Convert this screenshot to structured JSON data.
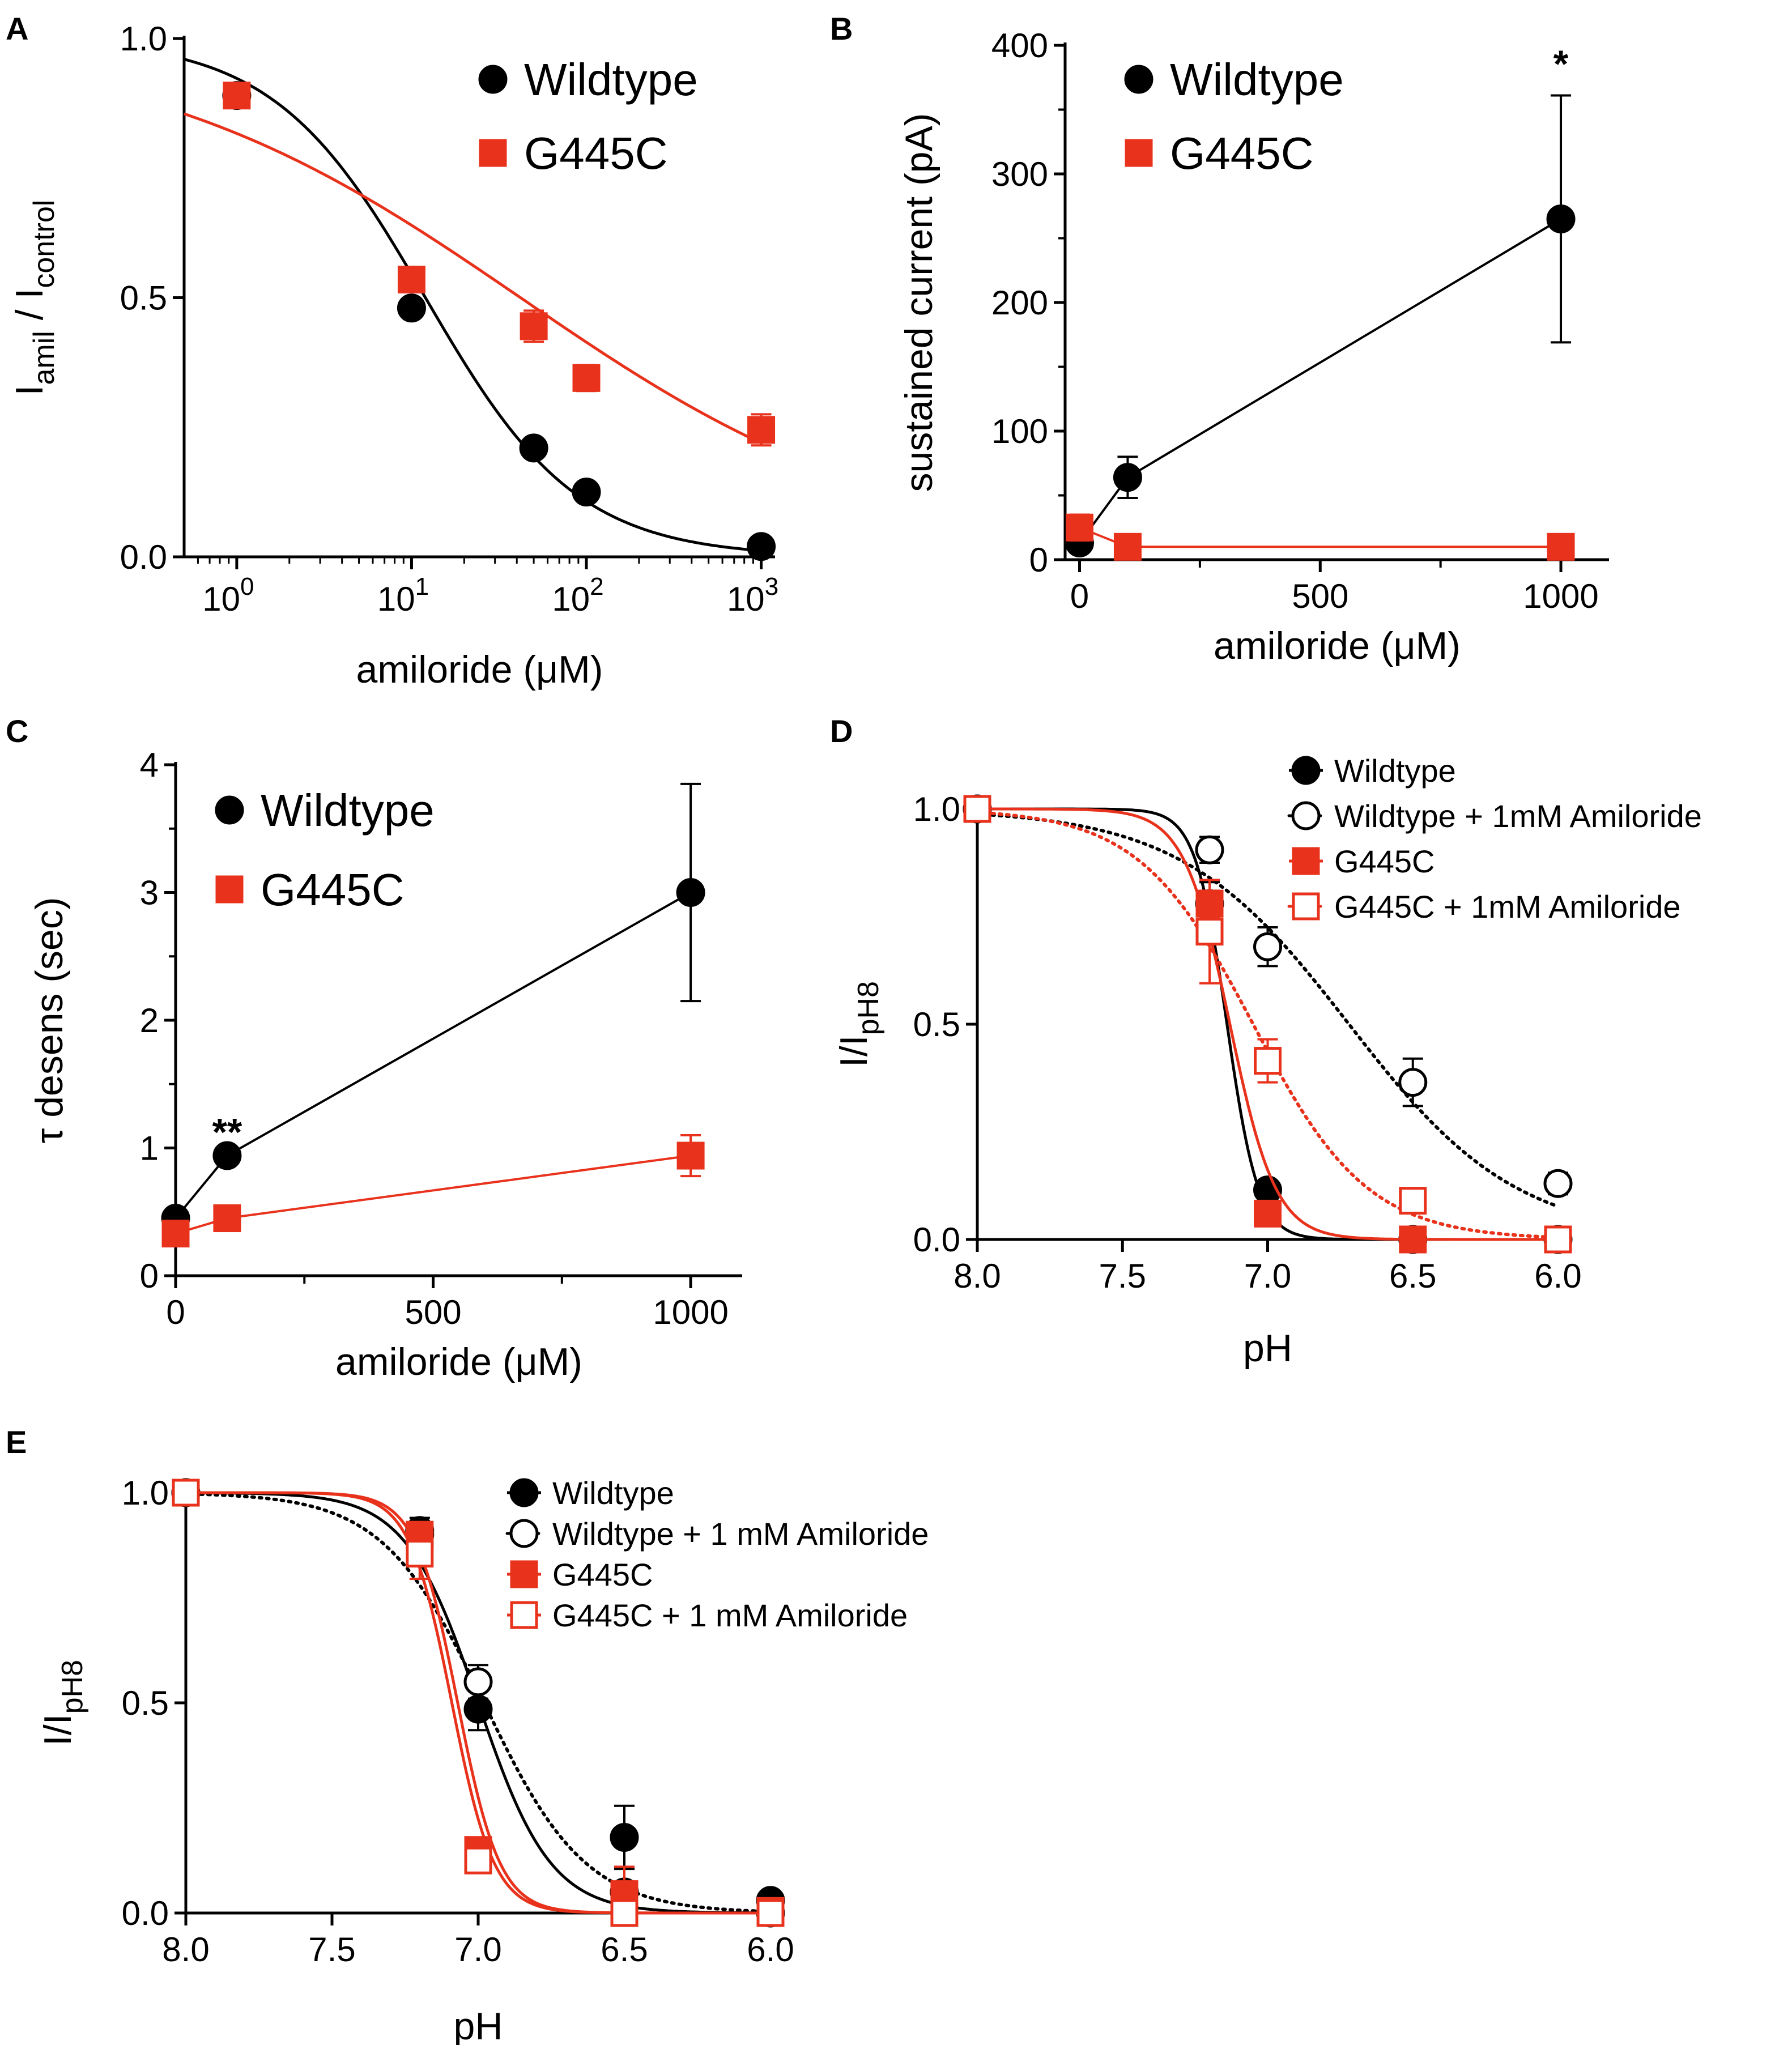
{
  "colors": {
    "wildtype": "#000000",
    "g445c": "#e8321c"
  },
  "chart_data": [
    {
      "panel": "A",
      "type": "scatter",
      "title": "",
      "xlabel": "amiloride (μM)",
      "ylabel": "Iamil / Icontrol",
      "ylabel_parts": {
        "main": "I",
        "sub1": "amil",
        "mid": " / I",
        "sub2": "control"
      },
      "xscale": "log",
      "xlim": [
        0.5,
        1200
      ],
      "ylim": [
        0,
        1.0
      ],
      "xticks": [
        1,
        10,
        100,
        1000
      ],
      "xtick_labels": [
        {
          "base": "10",
          "exp": "0"
        },
        {
          "base": "10",
          "exp": "1"
        },
        {
          "base": "10",
          "exp": "2"
        },
        {
          "base": "10",
          "exp": "3"
        }
      ],
      "yticks": [
        0,
        0.5,
        1.0
      ],
      "ytick_labels": [
        "0.0",
        "0.5",
        "1.0"
      ],
      "legend_position": "top-right",
      "series": [
        {
          "name": "Wildtype",
          "color_key": "wildtype",
          "marker": "circle",
          "filled": true,
          "x": [
            1,
            10,
            50,
            100,
            1000
          ],
          "y": [
            0.89,
            0.48,
            0.21,
            0.125,
            0.02
          ],
          "err": [
            0.015,
            0.012,
            0.01,
            0.01,
            0.008
          ],
          "fit": {
            "kind": "hill_inhibition",
            "top": 1.0,
            "bottom": 0.0,
            "ic50": 12,
            "hill": 1.0
          }
        },
        {
          "name": "G445C",
          "color_key": "g445c",
          "marker": "square",
          "filled": true,
          "x": [
            1,
            10,
            50,
            100,
            1000
          ],
          "y": [
            0.89,
            0.535,
            0.445,
            0.345,
            0.245
          ],
          "err": [
            0.015,
            0.015,
            0.03,
            0.025,
            0.03
          ],
          "fit": {
            "kind": "hill_inhibition",
            "top": 1.0,
            "bottom": 0.0,
            "ic50": 42,
            "hill": 0.4
          }
        }
      ]
    },
    {
      "panel": "B",
      "type": "line",
      "title": "",
      "xlabel": "amiloride (μM)",
      "ylabel": "sustained current (pA)",
      "xlim": [
        -30,
        1100
      ],
      "ylim": [
        0,
        400
      ],
      "xticks": [
        0,
        500,
        1000
      ],
      "xtick_labels": [
        "0",
        "500",
        "1000"
      ],
      "yticks": [
        0,
        100,
        200,
        300,
        400
      ],
      "ytick_labels": [
        "0",
        "100",
        "200",
        "300",
        "400"
      ],
      "legend_position": "top-left",
      "annotations": [
        {
          "text": "*",
          "x": 1000,
          "y": 385
        }
      ],
      "series": [
        {
          "name": "Wildtype",
          "color_key": "wildtype",
          "marker": "circle",
          "filled": true,
          "x": [
            0,
            100,
            1000
          ],
          "y": [
            13,
            64,
            265
          ],
          "err": [
            6,
            16,
            96
          ]
        },
        {
          "name": "G445C",
          "color_key": "g445c",
          "marker": "square",
          "filled": true,
          "x": [
            0,
            100,
            1000
          ],
          "y": [
            25,
            10,
            10
          ],
          "err": [
            10,
            3,
            3
          ]
        }
      ]
    },
    {
      "panel": "C",
      "type": "line",
      "title": "",
      "xlabel": "amiloride (μM)",
      "ylabel": "τ desens (sec)",
      "xlim": [
        0,
        1100
      ],
      "ylim": [
        0,
        4
      ],
      "xticks": [
        0,
        500,
        1000
      ],
      "xtick_labels": [
        "0",
        "500",
        "1000"
      ],
      "yticks": [
        0,
        1,
        2,
        3,
        4
      ],
      "ytick_labels": [
        "0",
        "1",
        "2",
        "3",
        "4"
      ],
      "legend_position": "top-left",
      "annotations": [
        {
          "text": "**",
          "x": 100,
          "y": 1.12
        }
      ],
      "series": [
        {
          "name": "Wildtype",
          "color_key": "wildtype",
          "marker": "circle",
          "filled": true,
          "x": [
            0,
            100,
            1000
          ],
          "y": [
            0.45,
            0.94,
            3.0
          ],
          "err": [
            0.05,
            0.06,
            0.85
          ]
        },
        {
          "name": "G445C",
          "color_key": "g445c",
          "marker": "square",
          "filled": true,
          "x": [
            0,
            100,
            1000
          ],
          "y": [
            0.33,
            0.45,
            0.94
          ],
          "err": [
            0.03,
            0.04,
            0.16
          ]
        }
      ]
    },
    {
      "panel": "D",
      "type": "scatter",
      "title": "",
      "xlabel": "pH",
      "ylabel": "I/IpH8",
      "ylabel_parts": {
        "main": "I/I",
        "sub1": "pH8"
      },
      "xlim": [
        8.0,
        6.0
      ],
      "ylim": [
        0,
        1.0
      ],
      "xticks": [
        8.0,
        7.5,
        7.0,
        6.5,
        6.0
      ],
      "xtick_labels": [
        "8.0",
        "7.5",
        "7.0",
        "6.5",
        "6.0"
      ],
      "yticks": [
        0,
        0.5,
        1.0
      ],
      "ytick_labels": [
        "0.0",
        "0.5",
        "1.0"
      ],
      "legend_position": "top-right",
      "series": [
        {
          "name": "Wildtype",
          "color_key": "wildtype",
          "marker": "circle",
          "filled": true,
          "dotted": false,
          "x": [
            8.0,
            7.2,
            7.0,
            6.5,
            6.0
          ],
          "y": [
            1.0,
            0.78,
            0.115,
            0.0,
            0.0
          ],
          "err": [
            0,
            0.05,
            0.01,
            0,
            0
          ],
          "fit": {
            "kind": "ph_decay",
            "pH50": 7.14,
            "n": 8
          }
        },
        {
          "name": "Wildtype + 1mM Amiloride",
          "color_key": "wildtype",
          "marker": "circle",
          "filled": false,
          "dotted": true,
          "x": [
            8.0,
            7.2,
            7.0,
            6.5,
            6.0
          ],
          "y": [
            1.0,
            0.905,
            0.68,
            0.365,
            0.13
          ],
          "err": [
            0,
            0.03,
            0.045,
            0.055,
            0.025
          ],
          "fit": {
            "kind": "ph_decay",
            "pH50": 6.72,
            "n": 1.5
          }
        },
        {
          "name": "G445C",
          "color_key": "g445c",
          "marker": "square",
          "filled": true,
          "dotted": false,
          "x": [
            8.0,
            7.2,
            7.0,
            6.5,
            6.0
          ],
          "y": [
            1.0,
            0.78,
            0.06,
            0.0,
            0.0
          ],
          "err": [
            0,
            0.03,
            0.01,
            0,
            0
          ],
          "fit": {
            "kind": "ph_decay",
            "pH50": 7.13,
            "n": 5.5
          }
        },
        {
          "name": "G445C + 1mM Amiloride",
          "color_key": "g445c",
          "marker": "square",
          "filled": false,
          "dotted": true,
          "x": [
            8.0,
            7.2,
            7.0,
            6.5,
            6.0
          ],
          "y": [
            1.0,
            0.715,
            0.415,
            0.09,
            0.0
          ],
          "err": [
            0,
            0.12,
            0.05,
            0.01,
            0.02
          ],
          "fit": {
            "kind": "ph_decay",
            "pH50": 7.05,
            "n": 2.2
          }
        }
      ]
    },
    {
      "panel": "E",
      "type": "scatter",
      "title": "",
      "xlabel": "pH",
      "ylabel": "I/IpH8",
      "ylabel_parts": {
        "main": "I/I",
        "sub1": "pH8"
      },
      "xlim": [
        8.0,
        6.0
      ],
      "ylim": [
        0,
        1.0
      ],
      "xticks": [
        8.0,
        7.5,
        7.0,
        6.5,
        6.0
      ],
      "xtick_labels": [
        "8.0",
        "7.5",
        "7.0",
        "6.5",
        "6.0"
      ],
      "yticks": [
        0,
        0.5,
        1.0
      ],
      "ytick_labels": [
        "0.0",
        "0.5",
        "1.0"
      ],
      "legend_position": "top-right",
      "series": [
        {
          "name": "Wildtype",
          "color_key": "wildtype",
          "marker": "circle",
          "filled": true,
          "dotted": false,
          "x": [
            8.0,
            7.2,
            7.0,
            6.5,
            6.0
          ],
          "y": [
            1.0,
            0.91,
            0.485,
            0.18,
            0.03
          ],
          "err": [
            0,
            0.03,
            0.05,
            0.075,
            0
          ],
          "fit": {
            "kind": "ph_decay",
            "pH50": 7.0,
            "n": 3.5
          }
        },
        {
          "name": "Wildtype + 1 mM Amiloride",
          "color_key": "wildtype",
          "marker": "circle",
          "filled": false,
          "dotted": true,
          "x": [
            8.0,
            7.2,
            7.0,
            6.5,
            6.0
          ],
          "y": [
            1.0,
            0.9,
            0.55,
            0.05,
            0.0
          ],
          "err": [
            0,
            0.03,
            0.04,
            0.02,
            0
          ],
          "fit": {
            "kind": "ph_decay",
            "pH50": 6.98,
            "n": 2.5
          }
        },
        {
          "name": "G445C",
          "color_key": "g445c",
          "marker": "square",
          "filled": true,
          "dotted": false,
          "x": [
            8.0,
            7.2,
            7.0,
            6.5,
            6.0
          ],
          "y": [
            1.0,
            0.9,
            0.15,
            0.045,
            0.005
          ],
          "err": [
            0,
            0.03,
            0.03,
            0.065,
            0
          ],
          "fit": {
            "kind": "ph_decay",
            "pH50": 7.07,
            "n": 6
          }
        },
        {
          "name": "G445C + 1 mM Amiloride",
          "color_key": "g445c",
          "marker": "square",
          "filled": false,
          "dotted": false,
          "x": [
            8.0,
            7.2,
            7.0,
            6.5,
            6.0
          ],
          "y": [
            1.0,
            0.855,
            0.125,
            0.0,
            0.0
          ],
          "err": [
            0,
            0.06,
            0.03,
            0,
            0
          ],
          "fit": {
            "kind": "ph_decay",
            "pH50": 7.09,
            "n": 6
          }
        }
      ]
    }
  ]
}
